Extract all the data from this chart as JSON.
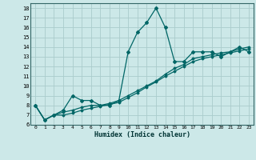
{
  "title": "",
  "xlabel": "Humidex (Indice chaleur)",
  "bg_color": "#cce8e8",
  "grid_color": "#aacccc",
  "line_color": "#006666",
  "xlim": [
    -0.5,
    23.5
  ],
  "ylim": [
    6,
    18.5
  ],
  "xticks": [
    0,
    1,
    2,
    3,
    4,
    5,
    6,
    7,
    8,
    9,
    10,
    11,
    12,
    13,
    14,
    15,
    16,
    17,
    18,
    19,
    20,
    21,
    22,
    23
  ],
  "yticks": [
    6,
    7,
    8,
    9,
    10,
    11,
    12,
    13,
    14,
    15,
    16,
    17,
    18
  ],
  "series1_x": [
    0,
    1,
    2,
    3,
    4,
    5,
    6,
    7,
    8,
    9,
    10,
    11,
    12,
    13,
    14,
    15,
    16,
    17,
    18,
    19,
    20,
    21,
    22,
    23
  ],
  "series1_y": [
    8.0,
    6.5,
    7.0,
    7.5,
    9.0,
    8.5,
    8.5,
    8.0,
    8.0,
    8.5,
    13.5,
    15.5,
    16.5,
    18.0,
    16.0,
    12.5,
    12.5,
    13.5,
    13.5,
    13.5,
    13.0,
    13.5,
    14.0,
    13.5
  ],
  "series2_x": [
    0,
    1,
    2,
    3,
    4,
    5,
    6,
    7,
    8,
    9,
    10,
    11,
    12,
    13,
    14,
    15,
    16,
    17,
    18,
    19,
    20,
    21,
    22,
    23
  ],
  "series2_y": [
    8.0,
    6.5,
    7.0,
    7.3,
    7.5,
    7.8,
    8.0,
    8.0,
    8.2,
    8.5,
    9.0,
    9.5,
    10.0,
    10.5,
    11.2,
    11.8,
    12.2,
    12.8,
    13.0,
    13.2,
    13.4,
    13.5,
    13.8,
    14.0
  ],
  "series3_x": [
    0,
    1,
    2,
    3,
    4,
    5,
    6,
    7,
    8,
    9,
    10,
    11,
    12,
    13,
    14,
    15,
    16,
    17,
    18,
    19,
    20,
    21,
    22,
    23
  ],
  "series3_y": [
    8.0,
    6.5,
    7.0,
    7.0,
    7.2,
    7.5,
    7.7,
    7.9,
    8.1,
    8.3,
    8.8,
    9.3,
    9.9,
    10.4,
    11.0,
    11.5,
    12.0,
    12.5,
    12.8,
    13.0,
    13.2,
    13.4,
    13.6,
    13.8
  ]
}
